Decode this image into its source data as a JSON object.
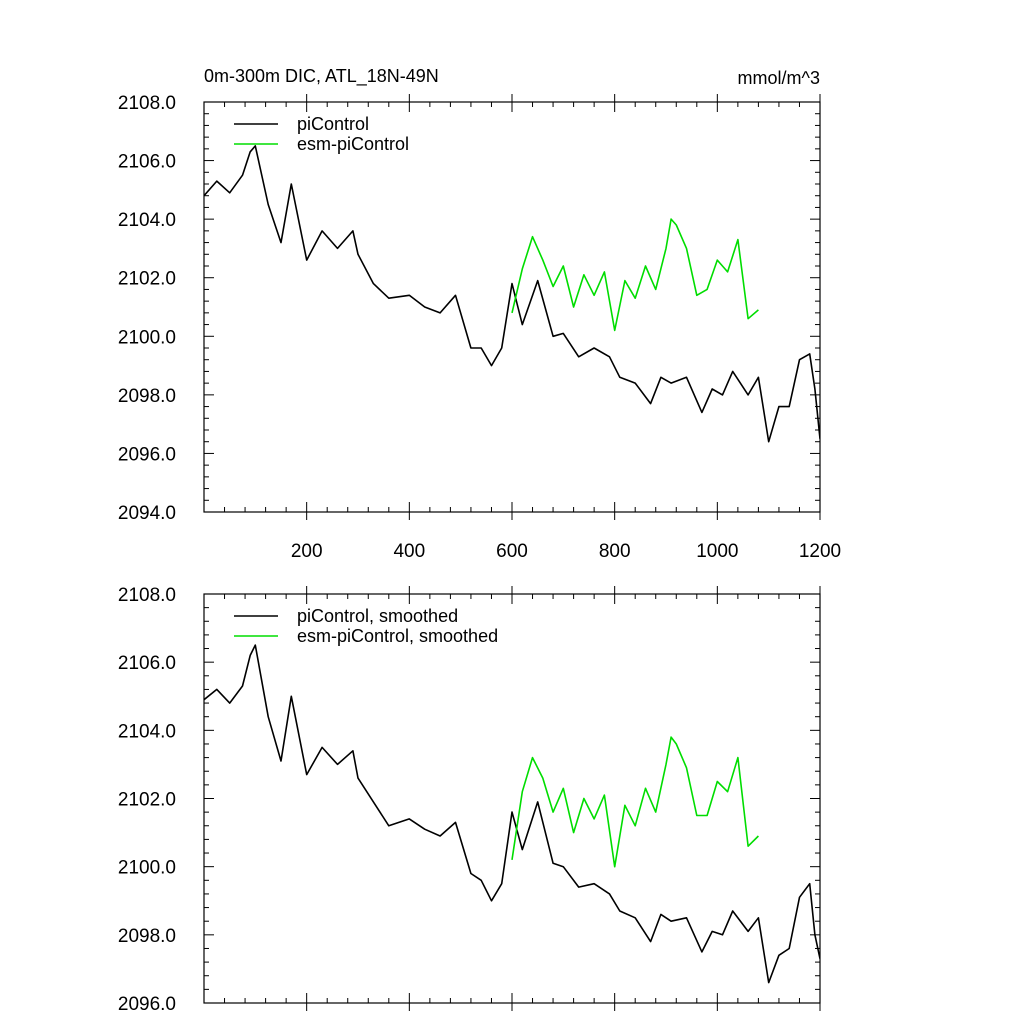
{
  "page": {
    "title": "0m-300m DIC, ATL_18N-49N",
    "units": "mmol/m^3"
  },
  "colors": {
    "piControl": "#000000",
    "esm_piControl": "#00dd00",
    "axis": "#000000"
  },
  "chart_data": [
    {
      "type": "line",
      "title": "0m-300m DIC, ATL_18N-49N",
      "units": "mmol/m^3",
      "xlabel": "",
      "ylabel": "",
      "xlim": [
        0,
        1200
      ],
      "ylim": [
        2094,
        2108
      ],
      "x_ticks": [
        200,
        400,
        600,
        800,
        1000,
        1200
      ],
      "x_tick_labels": [
        "200",
        "400",
        "600",
        "800",
        "1000",
        "1200"
      ],
      "y_ticks": [
        2094,
        2096,
        2098,
        2100,
        2102,
        2104,
        2106,
        2108
      ],
      "y_tick_labels": [
        "2094.0",
        "2096.0",
        "2098.0",
        "2100.0",
        "2102.0",
        "2104.0",
        "2106.0",
        "2108.0"
      ],
      "legend": "top-left",
      "series": [
        {
          "name": "piControl",
          "color": "#000000",
          "x": [
            0,
            25,
            50,
            75,
            90,
            100,
            125,
            150,
            170,
            200,
            230,
            260,
            290,
            300,
            330,
            360,
            400,
            430,
            460,
            490,
            520,
            540,
            560,
            580,
            600,
            620,
            650,
            680,
            700,
            730,
            760,
            790,
            810,
            840,
            870,
            890,
            910,
            940,
            970,
            990,
            1010,
            1030,
            1060,
            1080,
            1100,
            1120,
            1140,
            1160,
            1180,
            1190,
            1200
          ],
          "values": [
            2104.8,
            2105.3,
            2104.9,
            2105.5,
            2106.3,
            2106.5,
            2104.5,
            2103.2,
            2105.2,
            2102.6,
            2103.6,
            2103.0,
            2103.6,
            2102.8,
            2101.8,
            2101.3,
            2101.4,
            2101.0,
            2100.8,
            2101.4,
            2099.6,
            2099.6,
            2099.0,
            2099.6,
            2101.8,
            2100.4,
            2101.9,
            2100.0,
            2100.1,
            2099.3,
            2099.6,
            2099.3,
            2098.6,
            2098.4,
            2097.7,
            2098.6,
            2098.4,
            2098.6,
            2097.4,
            2098.2,
            2098.0,
            2098.8,
            2098.0,
            2098.6,
            2096.4,
            2097.6,
            2097.6,
            2099.2,
            2099.4,
            2098.2,
            2096.5
          ]
        },
        {
          "name": "esm-piControl",
          "color": "#00dd00",
          "x": [
            600,
            620,
            640,
            660,
            680,
            700,
            720,
            740,
            760,
            780,
            800,
            820,
            840,
            860,
            880,
            900,
            910,
            920,
            940,
            960,
            980,
            1000,
            1020,
            1040,
            1060,
            1080
          ],
          "values": [
            2100.8,
            2102.3,
            2103.4,
            2102.6,
            2101.7,
            2102.4,
            2101.0,
            2102.1,
            2101.4,
            2102.2,
            2100.2,
            2101.9,
            2101.3,
            2102.4,
            2101.6,
            2103.0,
            2104.0,
            2103.8,
            2103.0,
            2101.4,
            2101.6,
            2102.6,
            2102.2,
            2103.3,
            2100.6,
            2100.9
          ]
        }
      ]
    },
    {
      "type": "line",
      "title": "",
      "xlabel": "",
      "ylabel": "",
      "xlim": [
        0,
        1200
      ],
      "ylim": [
        2096,
        2108
      ],
      "x_ticks": [
        200,
        400,
        600,
        800,
        1000,
        1200
      ],
      "x_tick_labels": [],
      "y_ticks": [
        2096,
        2098,
        2100,
        2102,
        2104,
        2106,
        2108
      ],
      "y_tick_labels": [
        "2096.0",
        "2098.0",
        "2100.0",
        "2102.0",
        "2104.0",
        "2106.0",
        "2108.0"
      ],
      "legend": "top-left",
      "series": [
        {
          "name": "piControl, smoothed",
          "color": "#000000",
          "x": [
            0,
            25,
            50,
            75,
            90,
            100,
            125,
            150,
            170,
            200,
            230,
            260,
            290,
            300,
            330,
            360,
            400,
            430,
            460,
            490,
            520,
            540,
            560,
            580,
            600,
            620,
            650,
            680,
            700,
            730,
            760,
            790,
            810,
            840,
            870,
            890,
            910,
            940,
            970,
            990,
            1010,
            1030,
            1060,
            1080,
            1100,
            1120,
            1140,
            1160,
            1180,
            1190,
            1200
          ],
          "values": [
            2104.9,
            2105.2,
            2104.8,
            2105.3,
            2106.2,
            2106.5,
            2104.4,
            2103.1,
            2105.0,
            2102.7,
            2103.5,
            2103.0,
            2103.4,
            2102.6,
            2101.9,
            2101.2,
            2101.4,
            2101.1,
            2100.9,
            2101.3,
            2099.8,
            2099.6,
            2099.0,
            2099.5,
            2101.6,
            2100.5,
            2101.9,
            2100.1,
            2100.0,
            2099.4,
            2099.5,
            2099.2,
            2098.7,
            2098.5,
            2097.8,
            2098.6,
            2098.4,
            2098.5,
            2097.5,
            2098.1,
            2098.0,
            2098.7,
            2098.1,
            2098.5,
            2096.6,
            2097.4,
            2097.6,
            2099.1,
            2099.5,
            2098.0,
            2097.3
          ]
        },
        {
          "name": "esm-piControl, smoothed",
          "color": "#00dd00",
          "x": [
            600,
            620,
            640,
            660,
            680,
            700,
            720,
            740,
            760,
            780,
            800,
            820,
            840,
            860,
            880,
            900,
            910,
            920,
            940,
            960,
            980,
            1000,
            1020,
            1040,
            1060,
            1080
          ],
          "values": [
            2100.2,
            2102.2,
            2103.2,
            2102.6,
            2101.6,
            2102.3,
            2101.0,
            2102.0,
            2101.4,
            2102.1,
            2100.0,
            2101.8,
            2101.2,
            2102.3,
            2101.6,
            2103.0,
            2103.8,
            2103.6,
            2102.9,
            2101.5,
            2101.5,
            2102.5,
            2102.2,
            2103.2,
            2100.6,
            2100.9
          ]
        }
      ]
    }
  ]
}
